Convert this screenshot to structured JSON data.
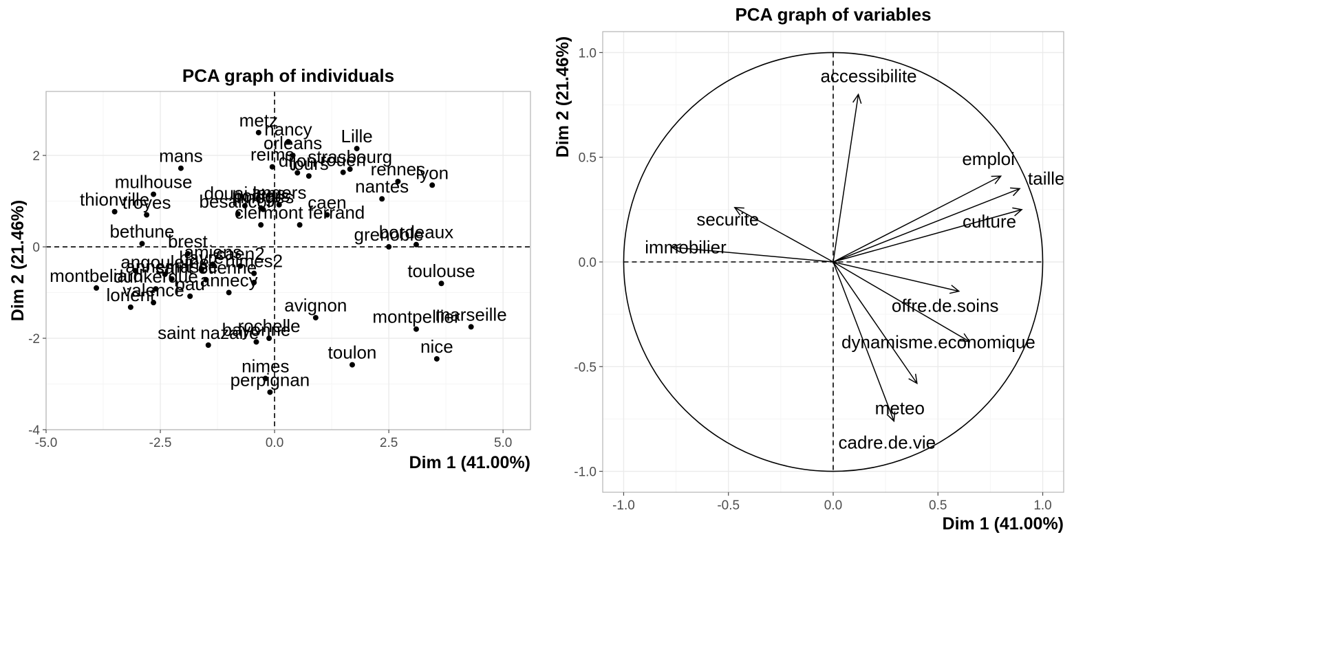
{
  "chart_data": [
    {
      "type": "scatter",
      "title": "PCA graph of individuals",
      "xlabel": "Dim 1 (41.00%)",
      "ylabel": "Dim 2 (21.46%)",
      "xlim": [
        -5.0,
        5.6
      ],
      "ylim": [
        -4.0,
        3.4
      ],
      "x_ticks": [
        -5.0,
        -2.5,
        0.0,
        2.5,
        5.0
      ],
      "x_tick_labels": [
        "-5.0",
        "-2.5",
        "0.0",
        "2.5",
        "5.0"
      ],
      "y_ticks": [
        -4,
        -2,
        0,
        2
      ],
      "y_tick_labels": [
        "-4",
        "-2",
        "0",
        "2"
      ],
      "grid": true,
      "points": [
        {
          "label": "metz",
          "x": -0.35,
          "y": 2.5
        },
        {
          "label": "nancy",
          "x": 0.3,
          "y": 2.3
        },
        {
          "label": "orleans",
          "x": 0.4,
          "y": 2.0
        },
        {
          "label": "Lille",
          "x": 1.8,
          "y": 2.15
        },
        {
          "label": "strasbourg",
          "x": 1.65,
          "y": 1.7
        },
        {
          "label": "reims",
          "x": -0.05,
          "y": 1.75
        },
        {
          "label": "mans",
          "x": -2.05,
          "y": 1.72
        },
        {
          "label": "dijon",
          "x": 0.5,
          "y": 1.62
        },
        {
          "label": "tours",
          "x": 0.75,
          "y": 1.55
        },
        {
          "label": "rouen",
          "x": 1.5,
          "y": 1.63
        },
        {
          "label": "rennes",
          "x": 2.7,
          "y": 1.43
        },
        {
          "label": "lyon",
          "x": 3.45,
          "y": 1.35
        },
        {
          "label": "nantes",
          "x": 2.35,
          "y": 1.05
        },
        {
          "label": "mulhouse",
          "x": -2.65,
          "y": 1.15
        },
        {
          "label": "douai lens",
          "x": -0.65,
          "y": 0.9
        },
        {
          "label": "poitiers",
          "x": -0.3,
          "y": 0.85
        },
        {
          "label": "limoges",
          "x": -0.25,
          "y": 0.82
        },
        {
          "label": "angers",
          "x": 0.1,
          "y": 0.92
        },
        {
          "label": "caen",
          "x": 1.15,
          "y": 0.7
        },
        {
          "label": "thionville",
          "x": -3.5,
          "y": 0.77
        },
        {
          "label": "troyes",
          "x": -2.8,
          "y": 0.7
        },
        {
          "label": "besancon",
          "x": -0.8,
          "y": 0.72
        },
        {
          "label": "clermont ferrand",
          "x": 0.55,
          "y": 0.48
        },
        {
          "label": "",
          "x": -0.3,
          "y": 0.48
        },
        {
          "label": "bethune",
          "x": -2.9,
          "y": 0.07
        },
        {
          "label": "bordeaux",
          "x": 3.1,
          "y": 0.05
        },
        {
          "label": "grenoble",
          "x": 2.5,
          "y": 0.0
        },
        {
          "label": "brest",
          "x": -1.9,
          "y": -0.15
        },
        {
          "label": "amiens",
          "x": -1.35,
          "y": -0.38
        },
        {
          "label": "caen2",
          "x": -0.75,
          "y": -0.42
        },
        {
          "label": "",
          "x": -3.05,
          "y": -0.52
        },
        {
          "label": "havre",
          "x": -1.6,
          "y": -0.5
        },
        {
          "label": "nimes2",
          "x": -0.45,
          "y": -0.58
        },
        {
          "label": "angouleme",
          "x": -2.4,
          "y": -0.6
        },
        {
          "label": "annemasse",
          "x": -2.25,
          "y": -0.7
        },
        {
          "label": "saint etienne",
          "x": -1.5,
          "y": -0.72
        },
        {
          "label": "",
          "x": -0.45,
          "y": -0.78
        },
        {
          "label": "toulouse",
          "x": 3.65,
          "y": -0.8
        },
        {
          "label": "montbeliard",
          "x": -3.9,
          "y": -0.9
        },
        {
          "label": "dunkerque",
          "x": -2.6,
          "y": -0.92
        },
        {
          "label": "annecy",
          "x": -1.0,
          "y": -1.0
        },
        {
          "label": "pau",
          "x": -1.85,
          "y": -1.08
        },
        {
          "label": "valence",
          "x": -2.65,
          "y": -1.22
        },
        {
          "label": "lorient",
          "x": -3.15,
          "y": -1.32
        },
        {
          "label": "avignon",
          "x": 0.9,
          "y": -1.55
        },
        {
          "label": "marseille",
          "x": 4.3,
          "y": -1.75
        },
        {
          "label": "montpellier",
          "x": 3.1,
          "y": -1.8
        },
        {
          "label": "rochelle",
          "x": -0.12,
          "y": -2.0
        },
        {
          "label": "bayonne",
          "x": -0.4,
          "y": -2.08
        },
        {
          "label": "saint nazaire",
          "x": -1.45,
          "y": -2.15
        },
        {
          "label": "nice",
          "x": 3.55,
          "y": -2.45
        },
        {
          "label": "toulon",
          "x": 1.7,
          "y": -2.58
        },
        {
          "label": "nimes",
          "x": -0.2,
          "y": -2.88
        },
        {
          "label": "perpignan",
          "x": -0.1,
          "y": -3.18
        }
      ]
    },
    {
      "type": "vector",
      "title": "PCA graph of variables",
      "xlabel": "Dim 1 (41.00%)",
      "ylabel": "Dim 2 (21.46%)",
      "xlim": [
        -1.1,
        1.1
      ],
      "ylim": [
        -1.1,
        1.1
      ],
      "x_ticks": [
        -1.0,
        -0.5,
        0.0,
        0.5,
        1.0
      ],
      "x_tick_labels": [
        "-1.0",
        "-0.5",
        "0.0",
        "0.5",
        "1.0"
      ],
      "y_ticks": [
        -1.0,
        -0.5,
        0.0,
        0.5,
        1.0
      ],
      "y_tick_labels": [
        "-1.0",
        "-0.5",
        "0.0",
        "0.5",
        "1.0"
      ],
      "grid": true,
      "unit_circle": true,
      "variables": [
        {
          "label": "accessibilite",
          "x": 0.12,
          "y": 0.8
        },
        {
          "label": "emploi",
          "x": 0.8,
          "y": 0.41
        },
        {
          "label": "taille",
          "x": 0.89,
          "y": 0.35
        },
        {
          "label": "culture",
          "x": 0.9,
          "y": 0.25
        },
        {
          "label": "securite",
          "x": -0.47,
          "y": 0.26
        },
        {
          "label": "immobilier",
          "x": -0.77,
          "y": 0.07
        },
        {
          "label": "offre.de.soins",
          "x": 0.6,
          "y": -0.14
        },
        {
          "label": "dynamisme.economique",
          "x": 0.65,
          "y": -0.38
        },
        {
          "label": "meteo",
          "x": 0.4,
          "y": -0.58
        },
        {
          "label": "cadre.de.vie",
          "x": 0.29,
          "y": -0.76
        }
      ]
    }
  ]
}
